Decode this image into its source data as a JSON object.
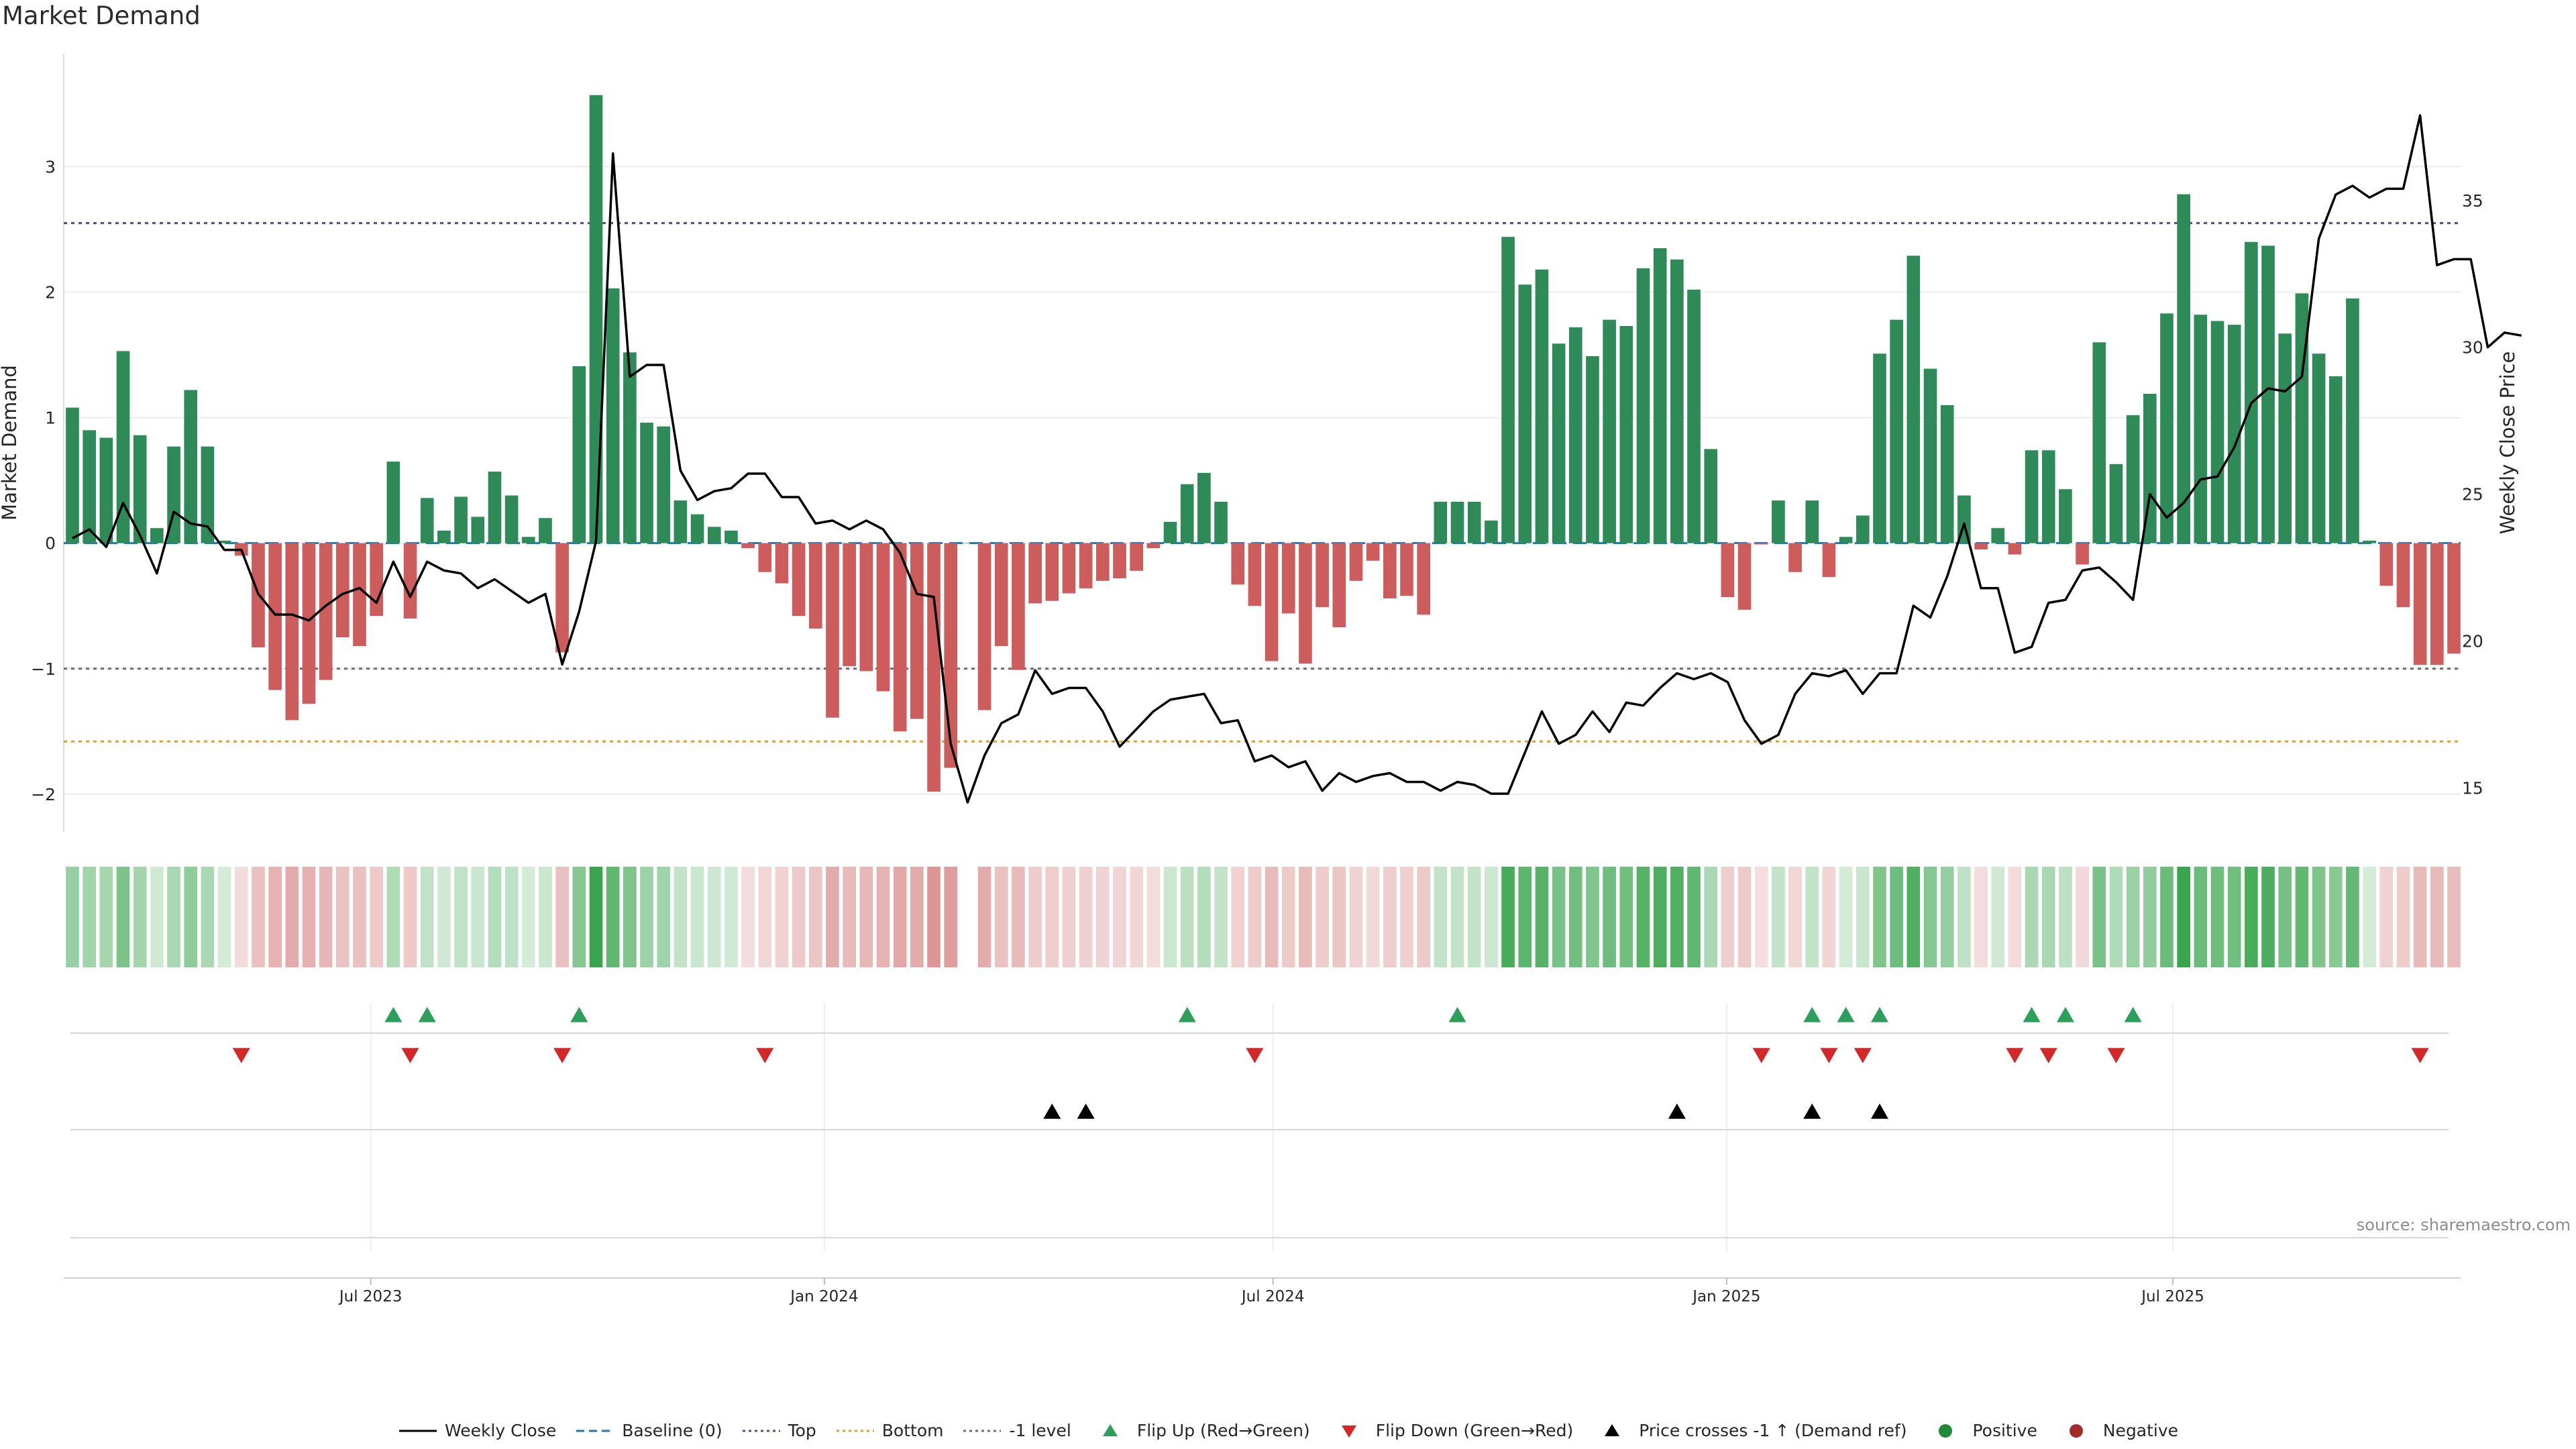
{
  "title": "Market Demand",
  "source": "source: sharemaestro.com",
  "colors": {
    "positive": "#2e8b57",
    "negative": "#cd5c5c",
    "price": "#000000",
    "baseline": "#1f77b4",
    "top": "#4b4b9b",
    "bottom": "#e69a28",
    "minus_one": "#6a6a7a",
    "flip_up": "#2ca05a",
    "flip_down": "#d62728",
    "cross": "#000000",
    "pos_dot": "#1f8a3a",
    "neg_dot": "#a52a2a"
  },
  "chart_data": {
    "type": "bar",
    "title": "Market Demand",
    "ylabel": "Market Demand",
    "y2label": "Weekly Close Price",
    "ylim": [
      -2.3,
      3.9
    ],
    "y2lim": [
      13.5,
      40.0
    ],
    "yticks": [
      -2,
      -1,
      0,
      1,
      2,
      3
    ],
    "y2ticks": [
      15,
      20,
      25,
      30,
      35
    ],
    "x_start": "2023-03-02",
    "x_end": "2025-10-23",
    "xticks": [
      "2023-07-01",
      "2024-01-01",
      "2024-07-01",
      "2025-01-01",
      "2025-07-01"
    ],
    "xtick_labels": [
      "Jul 2023",
      "Jan 2024",
      "Jul 2024",
      "Jan 2025",
      "Jul 2025"
    ],
    "levels": {
      "top": 2.55,
      "bottom": -1.58,
      "minus_one": -1.0,
      "baseline": 0
    },
    "series": [
      {
        "name": "Market Demand",
        "type": "bar",
        "values": [
          1.08,
          0.9,
          0.84,
          1.53,
          0.86,
          0.12,
          0.77,
          1.22,
          0.77,
          0.02,
          -0.1,
          -0.83,
          -1.17,
          -1.41,
          -1.28,
          -1.09,
          -0.75,
          -0.82,
          -0.58,
          0.65,
          -0.6,
          0.36,
          0.1,
          0.37,
          0.21,
          0.57,
          0.38,
          0.05,
          0.2,
          -0.87,
          1.41,
          3.57,
          2.03,
          1.52,
          0.96,
          0.93,
          0.34,
          0.23,
          0.13,
          0.1,
          -0.04,
          -0.23,
          -0.32,
          -0.58,
          -0.68,
          -1.39,
          -0.98,
          -1.02,
          -1.18,
          -1.5,
          -1.4,
          -1.98,
          -1.79,
          0.0,
          -1.33,
          -0.82,
          -1.01,
          -0.48,
          -0.46,
          -0.4,
          -0.36,
          -0.3,
          -0.28,
          -0.22,
          -0.04,
          0.17,
          0.47,
          0.56,
          0.33,
          -0.33,
          -0.5,
          -0.94,
          -0.56,
          -0.96,
          -0.51,
          -0.67,
          -0.3,
          -0.14,
          -0.44,
          -0.42,
          -0.57,
          0.33,
          0.33,
          0.33,
          0.18,
          2.44,
          2.06,
          2.18,
          1.59,
          1.72,
          1.49,
          1.78,
          1.73,
          2.19,
          2.35,
          2.26,
          2.02,
          0.75,
          -0.43,
          -0.53,
          -0.01,
          0.34,
          -0.23,
          0.34,
          -0.27,
          0.05,
          0.22,
          1.51,
          1.78,
          2.29,
          1.39,
          1.1,
          0.38,
          -0.05,
          0.12,
          -0.09,
          0.74,
          0.74,
          0.43,
          -0.17,
          1.6,
          0.63,
          1.02,
          1.19,
          1.83,
          2.78,
          1.82,
          1.77,
          1.74,
          2.4,
          2.37,
          1.67,
          1.99,
          1.51,
          1.33,
          1.95,
          0.02,
          -0.34,
          -0.51,
          -0.97,
          -0.97,
          -0.88
        ]
      },
      {
        "name": "Weekly Close",
        "type": "line",
        "values": [
          23.5,
          23.8,
          23.2,
          24.7,
          23.6,
          22.3,
          24.4,
          24.0,
          23.9,
          23.1,
          23.1,
          21.6,
          20.9,
          20.9,
          20.7,
          21.2,
          21.6,
          21.8,
          21.3,
          22.7,
          21.5,
          22.7,
          22.4,
          22.3,
          21.8,
          22.1,
          21.7,
          21.3,
          21.6,
          19.2,
          21.0,
          23.4,
          36.6,
          29.0,
          29.4,
          29.4,
          25.8,
          24.8,
          25.1,
          25.2,
          25.7,
          25.7,
          24.9,
          24.9,
          24.0,
          24.1,
          23.8,
          24.1,
          23.8,
          23.0,
          21.6,
          21.5,
          16.5,
          14.5,
          16.1,
          17.2,
          17.5,
          19.0,
          18.2,
          18.4,
          18.4,
          17.6,
          16.4,
          17.0,
          17.6,
          18.0,
          18.1,
          18.2,
          17.2,
          17.3,
          15.9,
          16.1,
          15.7,
          15.9,
          14.9,
          15.5,
          15.2,
          15.4,
          15.5,
          15.2,
          15.2,
          14.9,
          15.2,
          15.1,
          14.8,
          14.8,
          16.2,
          17.6,
          16.5,
          16.8,
          17.6,
          16.9,
          17.9,
          17.8,
          18.4,
          18.9,
          18.7,
          18.9,
          18.6,
          17.3,
          16.5,
          16.8,
          18.2,
          18.9,
          18.8,
          19.0,
          18.2,
          18.9,
          18.9,
          21.2,
          20.8,
          22.2,
          24.0,
          21.8,
          21.8,
          19.6,
          19.8,
          21.3,
          21.4,
          22.4,
          22.5,
          22.0,
          21.4,
          25.0,
          24.2,
          24.7,
          25.5,
          25.6,
          26.6,
          28.1,
          28.6,
          28.5,
          29.0,
          33.7,
          35.2,
          35.5,
          35.1,
          35.4,
          35.4,
          37.9,
          32.8,
          33.0,
          33.0,
          30.0,
          30.5,
          30.4
        ]
      }
    ],
    "flip_up_indices": [
      19,
      21,
      30,
      66,
      82,
      103,
      105,
      107,
      116,
      118,
      122
    ],
    "flip_down_indices": [
      10,
      20,
      29,
      41,
      70,
      100,
      104,
      106,
      115,
      117,
      121,
      139
    ],
    "cross_indices": [
      58,
      60,
      95,
      103,
      107
    ]
  },
  "legend": [
    {
      "label": "Weekly Close",
      "kind": "line",
      "style": "solid",
      "color": "#000000"
    },
    {
      "label": "Baseline (0)",
      "kind": "line",
      "style": "dashed",
      "color": "#1f77b4"
    },
    {
      "label": "Top",
      "kind": "line",
      "style": "dotted",
      "color": "#4b4b9b"
    },
    {
      "label": "Bottom",
      "kind": "line",
      "style": "dotted",
      "color": "#e69a28"
    },
    {
      "label": "-1 level",
      "kind": "line",
      "style": "dotted",
      "color": "#6a6a7a"
    },
    {
      "label": "Flip Up (Red→Green)",
      "kind": "tri-up",
      "color": "#2ca05a"
    },
    {
      "label": "Flip Down (Green→Red)",
      "kind": "tri-down",
      "color": "#d62728"
    },
    {
      "label": "Price crosses -1 ↑ (Demand ref)",
      "kind": "tri-up",
      "color": "#000000"
    },
    {
      "label": "Positive",
      "kind": "dot",
      "color": "#1f8a3a"
    },
    {
      "label": "Negative",
      "kind": "dot",
      "color": "#a52a2a"
    }
  ]
}
